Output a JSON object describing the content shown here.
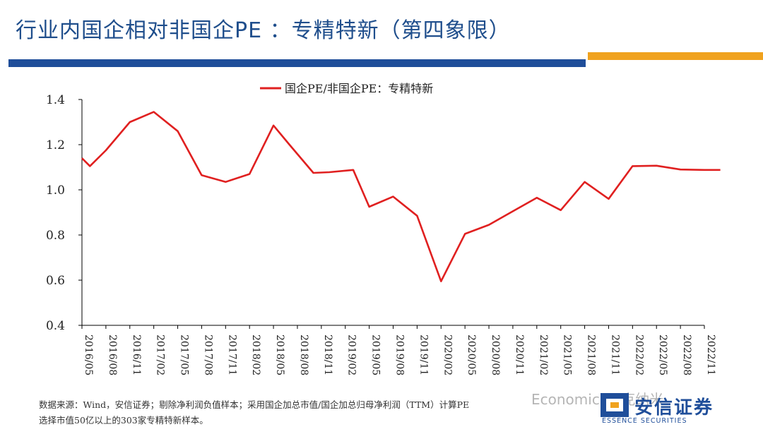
{
  "slide": {
    "title": "行业内国企相对非国企PE ：专精特新（第四象限）",
    "colors": {
      "title": "#1f4e8c",
      "bar_blue": "#1f4e9a",
      "bar_orange": "#f0a21e",
      "line": "#e02020"
    }
  },
  "chart_data": {
    "type": "line",
    "title": "",
    "legend": "国企PE/非国企PE：专精特新",
    "legend_position": "top-center",
    "xlabel": "",
    "ylabel": "",
    "ylim": [
      0.4,
      1.4
    ],
    "yticks": [
      "1.4",
      "1.2",
      "1.0",
      "0.8",
      "0.6",
      "0.4"
    ],
    "grid": false,
    "tick_labels": [
      "2016/05",
      "2016/08",
      "2016/11",
      "2017/02",
      "2017/05",
      "2017/08",
      "2017/11",
      "2018/02",
      "2018/05",
      "2018/08",
      "2018/11",
      "2019/02",
      "2019/05",
      "2019/08",
      "2019/11",
      "2020/02",
      "2020/05",
      "2020/08",
      "2020/11",
      "2021/02",
      "2021/05",
      "2021/08",
      "2021/11",
      "2022/02",
      "2022/05",
      "2022/08",
      "2022/11"
    ],
    "series": [
      {
        "name": "国企PE/非国企PE：专精特新",
        "color": "#e02020",
        "x": [
          0,
          0.333,
          1,
          2,
          3,
          4,
          5,
          6,
          7,
          8,
          8.667,
          9.667,
          10.333,
          11.333,
          12,
          13,
          14,
          15,
          16,
          17,
          18,
          19,
          20,
          21,
          22,
          23,
          24,
          25,
          26,
          26.667
        ],
        "values": [
          1.14,
          1.105,
          1.175,
          1.3,
          1.345,
          1.26,
          1.065,
          1.035,
          1.07,
          1.285,
          1.2,
          1.075,
          1.078,
          1.088,
          0.925,
          0.97,
          0.885,
          0.595,
          0.805,
          0.845,
          0.905,
          0.965,
          0.91,
          1.035,
          0.96,
          1.105,
          1.107,
          1.09,
          1.088,
          1.088
        ]
      }
    ]
  },
  "footnote": {
    "line1": "数据来源：Wind，安信证券；剔除净利润负值样本；采用国企加总市值/国企加总归母净利润（TTM）计算PE",
    "line2": "选择市值50亿以上的303家专精特新样本。"
  },
  "watermark": "Economics一克纳米",
  "logo": {
    "cn": "安信证券",
    "en": "ESSENCE SECURITIES"
  }
}
